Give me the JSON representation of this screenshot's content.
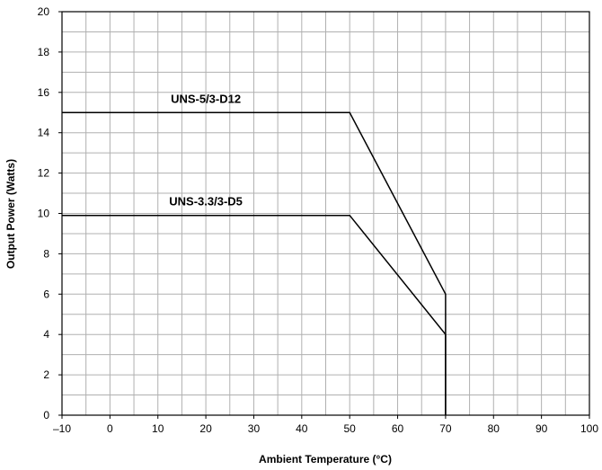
{
  "chart_data": {
    "type": "line",
    "title": "",
    "xlabel": "Ambient Temperature (°C)",
    "ylabel": "Output Power (Watts)",
    "xlim": [
      -10,
      100
    ],
    "ylim": [
      0,
      20
    ],
    "x_ticks": [
      -10,
      0,
      10,
      20,
      30,
      40,
      50,
      60,
      70,
      80,
      90,
      100
    ],
    "x_tick_labels": [
      "–10",
      "0",
      "10",
      "20",
      "30",
      "40",
      "50",
      "60",
      "70",
      "80",
      "90",
      "100"
    ],
    "y_ticks": [
      0,
      2,
      4,
      6,
      8,
      10,
      12,
      14,
      16,
      18,
      20
    ],
    "y_tick_labels": [
      "0",
      "2",
      "4",
      "6",
      "8",
      "10",
      "12",
      "14",
      "16",
      "18",
      "20"
    ],
    "grid": true,
    "legend": "none",
    "series": [
      {
        "name": "UNS-5/3-D12",
        "x": [
          -10,
          50,
          70,
          70
        ],
        "y": [
          15,
          15,
          6,
          0
        ]
      },
      {
        "name": "UNS-3.3/3-D5",
        "x": [
          -10,
          50,
          70,
          70
        ],
        "y": [
          9.9,
          9.9,
          4,
          0
        ]
      }
    ],
    "colors": {
      "grid": "#b0b0b0",
      "axes": "#000000",
      "series": "#000000"
    }
  }
}
